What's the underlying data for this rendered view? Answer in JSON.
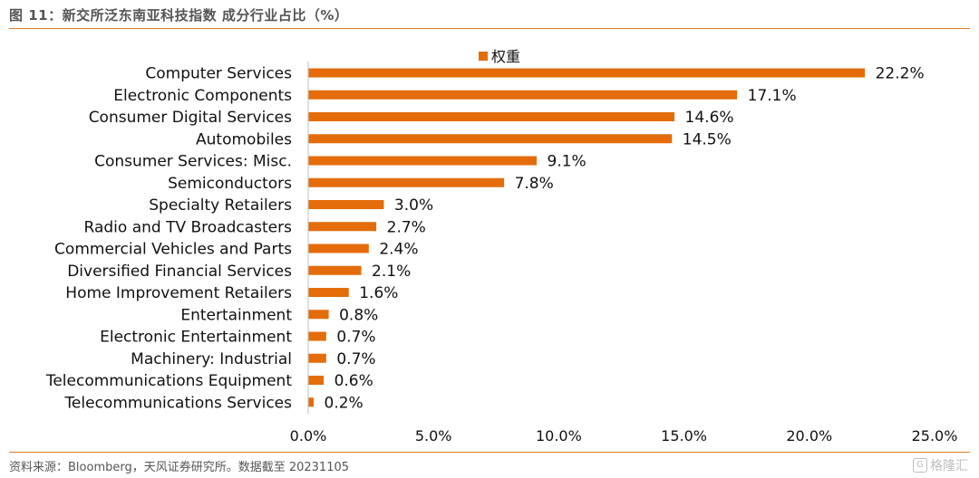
{
  "figure": {
    "title": "图 11：新交所泛东南亚科技指数 成分行业占比（%）",
    "source": "资料来源：Bloomberg，天风证券研究所。数据截至 20231105",
    "watermark": "格隆汇",
    "watermark_icon": "g-logo-icon"
  },
  "colors": {
    "bar": "#e46c0a",
    "rule": "#e07a1f",
    "axis": "#bfbfbf"
  },
  "chart_data": {
    "type": "bar",
    "orientation": "horizontal",
    "title": "",
    "xlabel": "",
    "ylabel": "",
    "categories": [
      "Computer Services",
      "Electronic Components",
      "Consumer Digital Services ",
      "Automobiles",
      "Consumer Services: Misc. ",
      "Semiconductors",
      "Specialty Retailers",
      "Radio and TV Broadcasters",
      "Commercial Vehicles and Parts",
      "Diversified Financial Services",
      "Home Improvement Retailers",
      "Entertainment",
      "Electronic Entertainment",
      "Machinery: Industrial",
      "Telecommunications Equipment",
      "Telecommunications Services"
    ],
    "series": [
      {
        "name": "权重",
        "values": [
          22.2,
          17.1,
          14.6,
          14.5,
          9.1,
          7.8,
          3.0,
          2.7,
          2.4,
          2.1,
          1.6,
          0.8,
          0.7,
          0.7,
          0.6,
          0.2
        ],
        "labels": [
          "22.2%",
          "17.1%",
          "14.6%",
          "14.5%",
          "9.1%",
          "7.8%",
          "3.0%",
          "2.7%",
          "2.4%",
          "2.1%",
          "1.6%",
          "0.8%",
          "0.7%",
          "0.7%",
          "0.6%",
          "0.2%"
        ]
      }
    ],
    "xlim": [
      0,
      25
    ],
    "xticks": [
      0,
      5,
      10,
      15,
      20,
      25
    ],
    "xtick_labels": [
      "0.0%",
      "5.0%",
      "10.0%",
      "15.0%",
      "20.0%",
      "25.0%"
    ],
    "grid": false,
    "legend_position": "top-center"
  }
}
